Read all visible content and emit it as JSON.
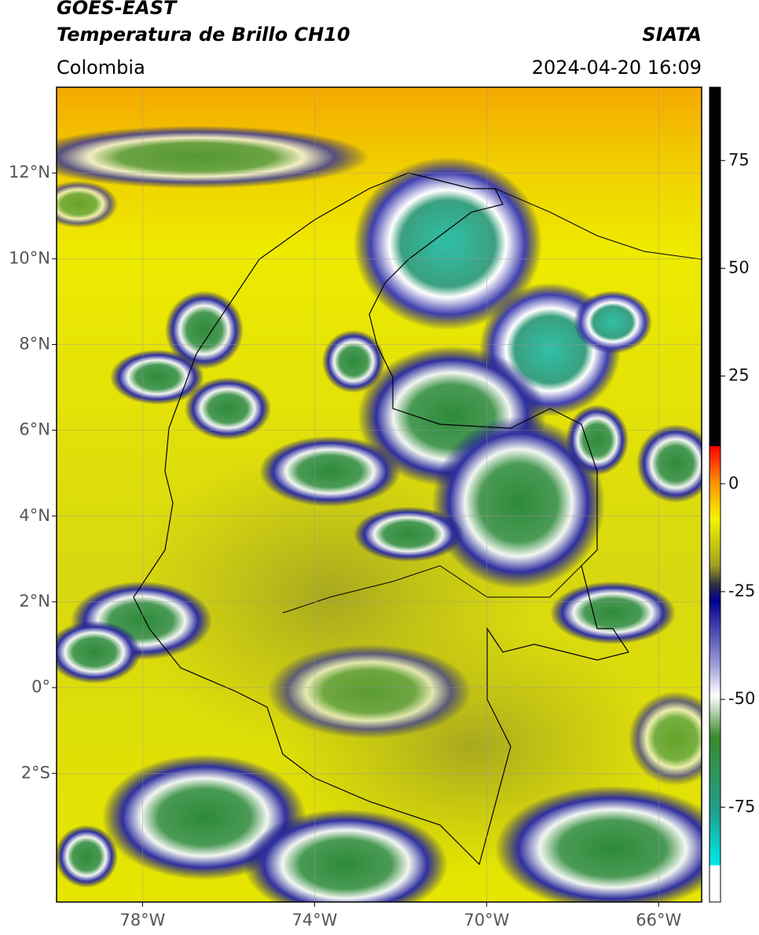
{
  "header": {
    "title": "GOES-EAST",
    "subtitle": "Temperatura de Brillo CH10",
    "region": "Colombia",
    "source": "SIATA",
    "timestamp": "2024-04-20 16:09"
  },
  "map": {
    "type": "map",
    "xlim": [
      -80,
      -65
    ],
    "ylim": [
      -5,
      14
    ],
    "grid": true,
    "xticks": [
      {
        "value": -78,
        "label": "78°W"
      },
      {
        "value": -74,
        "label": "74°W"
      },
      {
        "value": -70,
        "label": "70°W"
      },
      {
        "value": -66,
        "label": "66°W"
      }
    ],
    "yticks": [
      {
        "value": 12,
        "label": "12°N"
      },
      {
        "value": 10,
        "label": "10°N"
      },
      {
        "value": 8,
        "label": "8°N"
      },
      {
        "value": 6,
        "label": "6°N"
      },
      {
        "value": 4,
        "label": "4°N"
      },
      {
        "value": 2,
        "label": "2°N"
      },
      {
        "value": 0,
        "label": "0°"
      },
      {
        "value": -2,
        "label": "2°S"
      }
    ]
  },
  "colorbar": {
    "lim": [
      -97,
      92
    ],
    "ticks": [
      75,
      50,
      25,
      0,
      -25,
      -50,
      -75
    ]
  }
}
